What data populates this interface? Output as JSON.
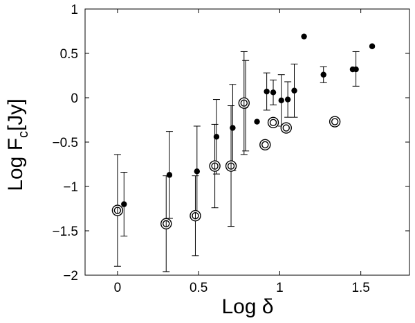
{
  "chart_data": {
    "type": "scatter",
    "xlabel": "Log δ",
    "ylabel_main": "Log F",
    "ylabel_sub": "c",
    "ylabel_unit": "[Jy]",
    "xlim": [
      -0.2,
      1.8
    ],
    "ylim": [
      -2,
      1
    ],
    "xticks": [
      0,
      0.5,
      1,
      1.5
    ],
    "xtick_labels": [
      "0",
      "0.5",
      "1",
      "1.5"
    ],
    "yticks": [
      -2,
      -1.5,
      -1,
      -0.5,
      0,
      0.5,
      1
    ],
    "ytick_labels": [
      "−2",
      "−1.5",
      "−1",
      "−0.5",
      "0",
      "0.5",
      "1"
    ],
    "grid": false,
    "series": [
      {
        "marker": "filled-circle",
        "points": [
          {
            "x": 0.04,
            "y": -1.2,
            "lo": -1.56,
            "hi": -0.84
          },
          {
            "x": 0.32,
            "y": -0.87,
            "lo": -1.36,
            "hi": -0.38
          },
          {
            "x": 0.49,
            "y": -0.83,
            "lo": -1.34,
            "hi": -0.32
          },
          {
            "x": 0.61,
            "y": -0.44,
            "lo": -0.86,
            "hi": -0.02
          },
          {
            "x": 0.71,
            "y": -0.34,
            "lo": -0.82,
            "hi": 0.15
          },
          {
            "x": 0.79,
            "y": -0.09,
            "lo": -0.6,
            "hi": 0.42
          },
          {
            "x": 0.86,
            "y": -0.27
          },
          {
            "x": 0.92,
            "y": 0.07,
            "lo": -0.14,
            "hi": 0.28
          },
          {
            "x": 0.96,
            "y": 0.06,
            "lo": -0.08,
            "hi": 0.2
          },
          {
            "x": 1.01,
            "y": -0.03,
            "lo": -0.32,
            "hi": 0.26
          },
          {
            "x": 1.05,
            "y": -0.02,
            "lo": -0.22,
            "hi": 0.18
          },
          {
            "x": 1.09,
            "y": 0.08,
            "lo": -0.22,
            "hi": 0.38
          },
          {
            "x": 1.15,
            "y": 0.69
          },
          {
            "x": 1.27,
            "y": 0.26,
            "lo": 0.17,
            "hi": 0.35
          },
          {
            "x": 1.45,
            "y": 0.32
          },
          {
            "x": 1.47,
            "y": 0.32,
            "lo": 0.13,
            "hi": 0.52
          },
          {
            "x": 1.57,
            "y": 0.58
          }
        ]
      },
      {
        "marker": "open-double-circle",
        "points": [
          {
            "x": 0.0,
            "y": -1.27,
            "lo": -1.9,
            "hi": -0.64
          },
          {
            "x": 0.3,
            "y": -1.42,
            "lo": -1.96,
            "hi": -0.88
          },
          {
            "x": 0.48,
            "y": -1.33,
            "lo": -1.78,
            "hi": -0.88
          },
          {
            "x": 0.6,
            "y": -0.77,
            "lo": -1.24,
            "hi": -0.3
          },
          {
            "x": 0.7,
            "y": -0.77,
            "lo": -1.45,
            "hi": -0.09
          },
          {
            "x": 0.78,
            "y": -0.06,
            "lo": -0.64,
            "hi": 0.52
          },
          {
            "x": 0.91,
            "y": -0.53
          },
          {
            "x": 0.96,
            "y": -0.28
          },
          {
            "x": 1.04,
            "y": -0.34
          },
          {
            "x": 1.34,
            "y": -0.27
          }
        ]
      }
    ]
  }
}
